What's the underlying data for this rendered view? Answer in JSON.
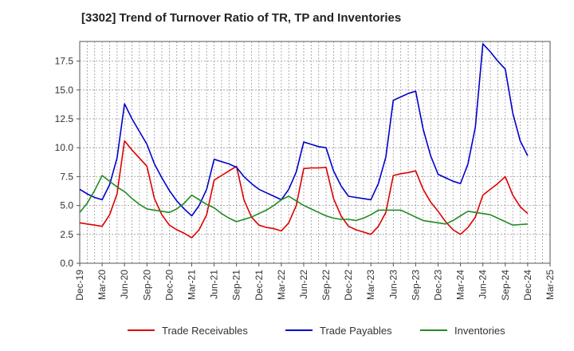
{
  "chart_data": {
    "type": "line",
    "title": "[3302]  Trend of Turnover Ratio of TR, TP and Inventories",
    "xlabel": "",
    "ylabel": "",
    "x_start": "Dec-19",
    "x_tick_labels": [
      "Dec-19",
      "Mar-20",
      "Jun-20",
      "Sep-20",
      "Dec-20",
      "Mar-21",
      "Jun-21",
      "Sep-21",
      "Dec-21",
      "Mar-22",
      "Jun-22",
      "Sep-22",
      "Dec-22",
      "Mar-23",
      "Jun-23",
      "Sep-23",
      "Dec-23",
      "Mar-24",
      "Jun-24",
      "Sep-24",
      "Dec-24",
      "Mar-25"
    ],
    "y_tick_labels": [
      "0.0",
      "2.5",
      "5.0",
      "7.5",
      "10.0",
      "12.5",
      "15.0",
      "17.5"
    ],
    "ylim": [
      0,
      19.2
    ],
    "grid": true,
    "legend_position": "bottom",
    "series": [
      {
        "name": "Trade Receivables",
        "color": "#dd0000",
        "values": [
          3.5,
          3.4,
          3.3,
          3.2,
          4.2,
          6.0,
          10.6,
          9.8,
          9.1,
          8.4,
          5.6,
          4.2,
          3.3,
          2.9,
          2.6,
          2.2,
          2.9,
          4.2,
          7.2,
          7.6,
          8.0,
          8.4,
          5.5,
          4.0,
          3.3,
          3.1,
          3.0,
          2.8,
          3.5,
          5.0,
          8.2,
          8.25,
          8.25,
          8.3,
          5.6,
          4.1,
          3.2,
          2.9,
          2.7,
          2.5,
          3.2,
          4.4,
          7.6,
          7.75,
          7.85,
          8.0,
          6.4,
          5.3,
          4.5,
          3.6,
          2.9,
          2.5,
          3.1,
          4.0,
          5.9,
          6.4,
          6.9,
          7.5,
          5.9,
          4.9,
          4.3
        ]
      },
      {
        "name": "Trade Payables",
        "color": "#0000cc",
        "values": [
          6.4,
          6.0,
          5.7,
          5.5,
          6.8,
          9.1,
          13.8,
          12.5,
          11.4,
          10.3,
          8.6,
          7.4,
          6.3,
          5.4,
          4.7,
          4.1,
          5.0,
          6.4,
          9.0,
          8.8,
          8.6,
          8.3,
          7.5,
          6.9,
          6.4,
          6.1,
          5.8,
          5.5,
          6.4,
          7.9,
          10.5,
          10.3,
          10.1,
          10.0,
          8.0,
          6.7,
          5.8,
          5.7,
          5.6,
          5.5,
          6.9,
          9.2,
          14.1,
          14.4,
          14.7,
          14.9,
          11.6,
          9.3,
          7.7,
          7.4,
          7.1,
          6.9,
          8.6,
          11.8,
          19.0,
          18.3,
          17.5,
          16.8,
          13.0,
          10.6,
          9.3
        ]
      },
      {
        "name": "Inventories",
        "color": "#228b22",
        "values": [
          4.4,
          5.2,
          6.3,
          7.6,
          7.1,
          6.6,
          6.2,
          5.6,
          5.1,
          4.7,
          4.6,
          4.5,
          4.4,
          4.7,
          5.2,
          5.9,
          5.5,
          5.1,
          4.8,
          4.3,
          3.9,
          3.6,
          3.8,
          4.0,
          4.3,
          4.6,
          5.0,
          5.5,
          5.8,
          5.4,
          5.0,
          4.7,
          4.4,
          4.1,
          3.9,
          3.8,
          3.8,
          3.7,
          3.9,
          4.2,
          4.6,
          4.6,
          4.6,
          4.6,
          4.3,
          4.0,
          3.7,
          3.6,
          3.5,
          3.4,
          3.7,
          4.1,
          4.5,
          4.4,
          4.3,
          4.2,
          3.9,
          3.6,
          3.3,
          3.35,
          3.4
        ]
      }
    ]
  }
}
